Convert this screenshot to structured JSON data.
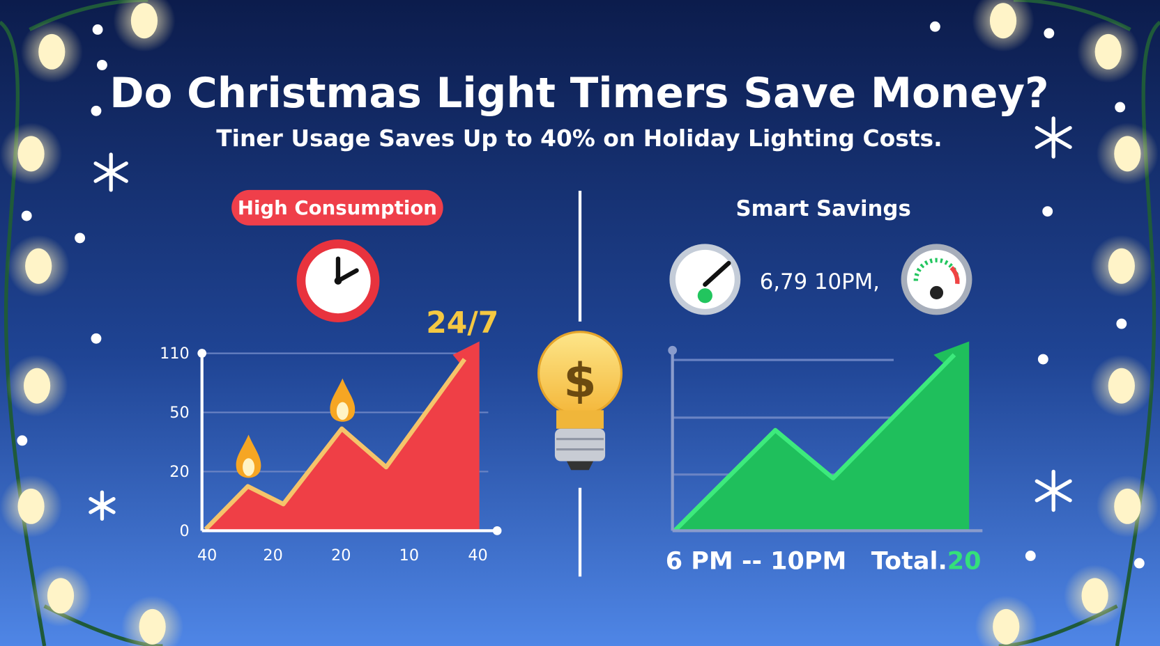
{
  "header": {
    "title": "Do Christmas Light Timers Save Money?",
    "subtitle": "Tiner Usage Saves Up to 40% on Holiday Lighting Costs."
  },
  "left_panel": {
    "badge": "High Consumption",
    "highlight": "24/7",
    "y_labels": [
      "110",
      "50",
      "20",
      "0"
    ],
    "x_labels": [
      "40",
      "20",
      "20",
      "10",
      "40"
    ]
  },
  "right_panel": {
    "heading": "Smart Savings",
    "gauge_label": "6,79 10PM,",
    "time_range": "6 PM -- 10PM",
    "total_label": "Total.",
    "total_value": "20"
  }
}
